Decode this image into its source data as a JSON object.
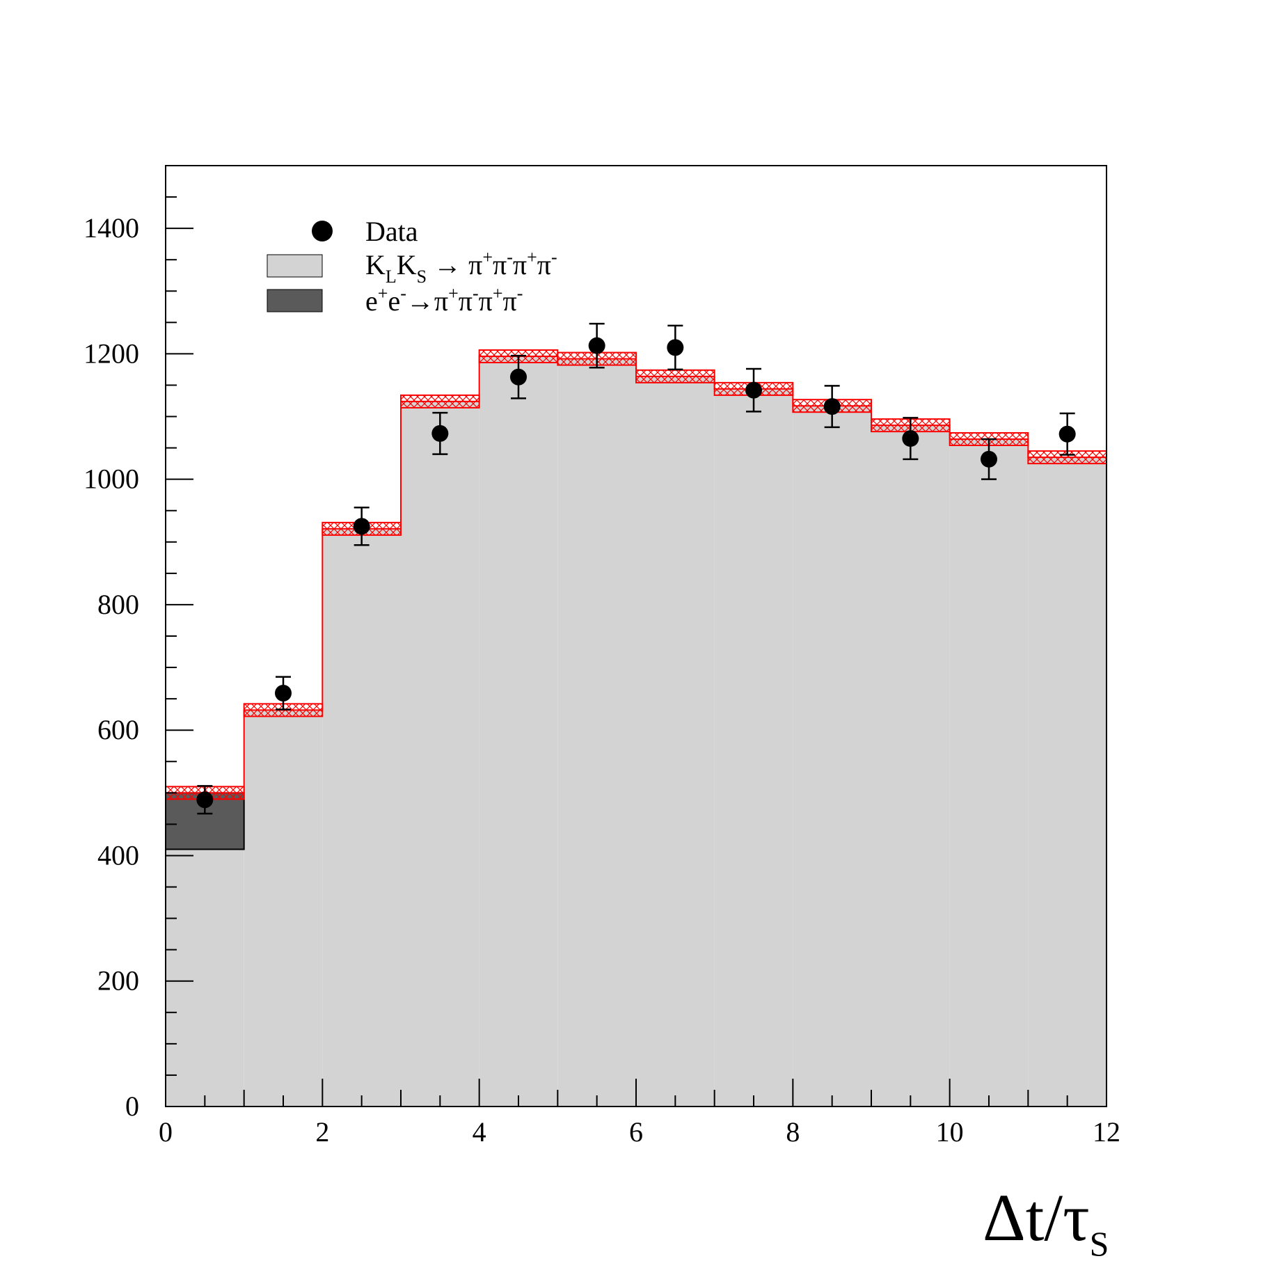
{
  "chart_data": {
    "type": "bar",
    "x_edges": [
      0,
      1,
      2,
      3,
      4,
      5,
      6,
      7,
      8,
      9,
      10,
      11,
      12
    ],
    "xlim": [
      0,
      12
    ],
    "ylim": [
      0,
      1500
    ],
    "xticks": [
      0,
      2,
      4,
      6,
      8,
      10,
      12
    ],
    "yticks": [
      0,
      200,
      400,
      600,
      800,
      1000,
      1200,
      1400
    ],
    "xlabel": {
      "main": "Δt/τ",
      "sub": "S"
    },
    "ylabel": "",
    "grid": false,
    "legend_position": "top-left",
    "series": [
      {
        "name": "Data",
        "kind": "points",
        "x": [
          0.5,
          1.5,
          2.5,
          3.5,
          4.5,
          5.5,
          6.5,
          7.5,
          8.5,
          9.5,
          10.5,
          11.5
        ],
        "values": [
          489,
          659,
          925,
          1073,
          1163,
          1213,
          1210,
          1142,
          1116,
          1065,
          1032,
          1072
        ],
        "errors": [
          22,
          26,
          30,
          33,
          34,
          35,
          35,
          34,
          33,
          33,
          32,
          33
        ],
        "color": "#000000"
      },
      {
        "name": "K_L K_S → π+π-π+π-",
        "legend_parts": {
          "k1": "K",
          "k1sub": "L",
          "k2": "K",
          "k2sub": "S",
          "arrow": " → ",
          "decay": [
            "π",
            "+",
            "π",
            "-",
            "π",
            "+",
            "π",
            "-"
          ]
        },
        "kind": "hist",
        "values": [
          500,
          632,
          921,
          1124,
          1196,
          1192,
          1164,
          1144,
          1117,
          1086,
          1064,
          1035
        ],
        "band": 10,
        "fill": "#d3d3d3",
        "line": "#ff0000"
      },
      {
        "name": "e+e-→π+π-π+π-",
        "legend_parts": {
          "e1": "e",
          "e1sup": "+",
          "e2": "e",
          "e2sup": "-",
          "arrow": "→",
          "decay": [
            "π",
            "+",
            "π",
            "-",
            "π",
            "+",
            "π",
            "-"
          ]
        },
        "kind": "hist",
        "values": [
          90,
          0,
          0,
          0,
          0,
          0,
          0,
          0,
          0,
          0,
          0,
          0
        ],
        "fill": "#5a5a5a"
      }
    ]
  }
}
